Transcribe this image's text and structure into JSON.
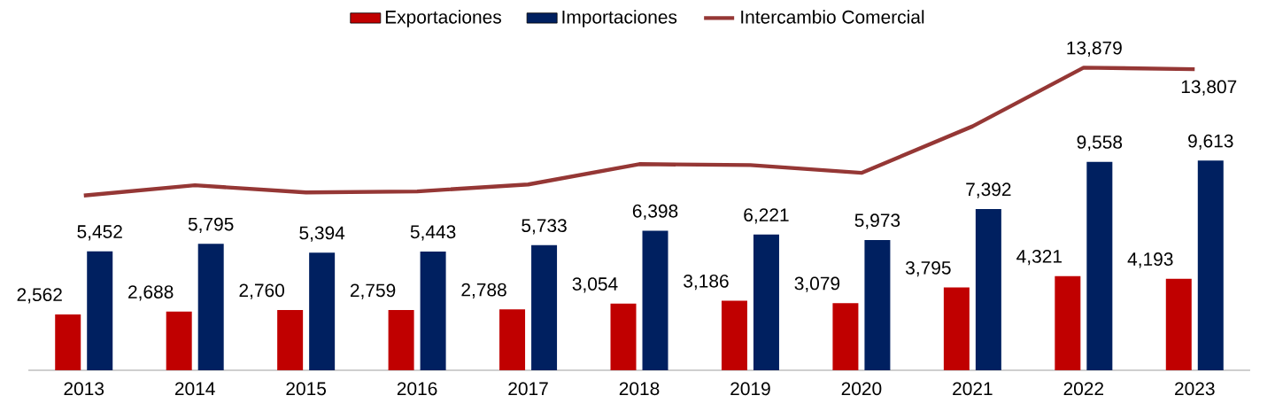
{
  "chart_data": {
    "type": "bar",
    "categories": [
      "2013",
      "2014",
      "2015",
      "2016",
      "2017",
      "2018",
      "2019",
      "2020",
      "2021",
      "2022",
      "2023"
    ],
    "series": [
      {
        "name": "Exportaciones",
        "color": "#c00000",
        "values": [
          2562,
          2688,
          2760,
          2759,
          2788,
          3054,
          3186,
          3079,
          3795,
          4321,
          4193
        ],
        "value_labels": [
          "2,562",
          "2,688",
          "2,760",
          "2,759",
          "2,788",
          "3,054",
          "3,186",
          "3,079",
          "3,795",
          "4,321",
          "4,193"
        ]
      },
      {
        "name": "Importaciones",
        "color": "#002060",
        "values": [
          5452,
          5795,
          5394,
          5443,
          5733,
          6398,
          6221,
          5973,
          7392,
          9558,
          9613
        ],
        "value_labels": [
          "5,452",
          "5,795",
          "5,394",
          "5,443",
          "5,733",
          "6,398",
          "6,221",
          "5,973",
          "7,392",
          "9,558",
          "9,613"
        ]
      },
      {
        "name": "Intercambio Comercial",
        "type": "line",
        "color": "#953735",
        "values": [
          8014,
          8483,
          8154,
          8202,
          8521,
          9452,
          9407,
          9052,
          11187,
          13879,
          13807
        ],
        "value_labels": [
          null,
          null,
          null,
          null,
          null,
          null,
          null,
          null,
          null,
          "13,879",
          "13,807"
        ]
      }
    ],
    "legend": "top"
  }
}
